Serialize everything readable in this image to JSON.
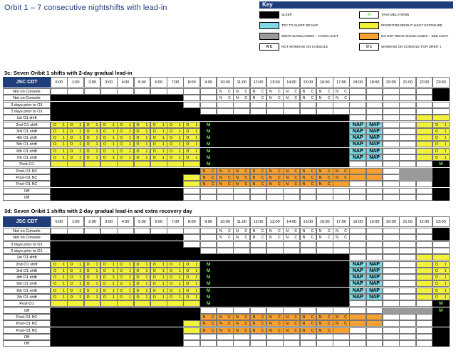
{
  "title": "Orbit 1 – 7 consecutive nightshifts with lead-in",
  "key": {
    "header": "Key",
    "items": [
      {
        "code": "sleep",
        "swatch": "",
        "label": "SLEEP",
        "color": "#000000"
      },
      {
        "code": "melatonin",
        "swatch": "M",
        "label": "TAKE MELATONIN",
        "color": "#ffffff"
      },
      {
        "code": "nap",
        "swatch": "",
        "label": "TRY TO SLEEP OR NAP",
        "color": "#7fd8e6"
      },
      {
        "code": "bright",
        "swatch": "",
        "label": "PRIORITIZE BRIGHT LIGHT EXPOSURE",
        "color": "#f2f23a"
      },
      {
        "code": "avoid",
        "swatch": "",
        "label": "WEAR SUNGLASSES – AVOID LIGHT",
        "color": "#9a9a9a"
      },
      {
        "code": "see",
        "swatch": "",
        "label": "DO NOT WEAR SUNGLASSES – SEE LIGHT",
        "color": "#f5a030"
      },
      {
        "code": "nc",
        "swatch": "N C",
        "label": "NOT WORKING ON CONSOLE",
        "color": "#ffffff"
      },
      {
        "code": "o1",
        "swatch": "O 1",
        "label": "WORKING ON CONSOLE FOR ORBIT 1",
        "color": "#ffffff"
      }
    ]
  },
  "chart_data": [
    {
      "type": "table",
      "title": "3c:  Seven Oribit 1 shifts with 2-day gradual lead-in",
      "header_label": "JSC CDT",
      "hours": [
        "0:00",
        "1:00",
        "2:00",
        "3:00",
        "4:00",
        "5:00",
        "6:00",
        "7:00",
        "8:00",
        "9:00",
        "10:00",
        "11:00",
        "12:00",
        "13:00",
        "14:00",
        "15:00",
        "16:00",
        "17:00",
        "18:00",
        "19:00",
        "20:00",
        "21:00",
        "22:00",
        "23:00"
      ],
      "rows": [
        {
          "label": "Not on Console",
          "cells": "WWWWWWWWWWnnnnnnnnWWWWWB"
        },
        {
          "label": "Not on Console",
          "cells": "BBBBBBBBWWnnnnnnnnWWWWWB"
        },
        {
          "label": "3 days prior to O1",
          "cells": "BBBBBBBBWWWWWWWWWWWWWWWW"
        },
        {
          "label": "2 days prior to O1",
          "cells": "BBBBBBBBBWWWWWWWWWWWWWWW"
        },
        {
          "label": "1st O1 shift",
          "cells": "BBBBBBBBBBBBBBBBBBWWWWYY"
        },
        {
          "label": "2nd O1 shift",
          "cells": "oooooooooMBBBBBBBBPPWWYo"
        },
        {
          "label": "3rd O1 shift",
          "cells": "oooooooooMBBBBBBBBPPWWYo"
        },
        {
          "label": "4th O1 shift",
          "cells": "oooooooooMBBBBBBBBPPWWYo"
        },
        {
          "label": "5th O1 shift",
          "cells": "oooooooooMBBBBBBBBPPWWYo"
        },
        {
          "label": "6th O1 shift",
          "cells": "oooooooooMBBBBBBBBPPWWYo"
        },
        {
          "label": "7th O1 shift",
          "cells": "oooooooooMBBBBBBBBPPWWYo"
        },
        {
          "label": "Post-O1",
          "cells": "YYYYYYYYYMBBBBBBBBWWWWWM"
        },
        {
          "label": "Post-O1 NC",
          "cells": "BBBBBBBBBcccccccccOOWGGB"
        },
        {
          "label": "Post-O1 NC",
          "cells": "BBBBBBBBYcccccccccOOWGGB"
        },
        {
          "label": "Post-O1 NC",
          "cells": "BBBBBBBBYccccccccOWWWWWB"
        },
        {
          "label": "Off",
          "cells": "BBBBBBBBWWWWWWWWWWWWWWWB"
        },
        {
          "label": "Off",
          "cells": "BBBBBBBBWWWWWWWWWWWWWWWB"
        }
      ]
    },
    {
      "type": "table",
      "title": "3d:  Seven Oribit 1 shifts with 2-day gradual lead-in and extra recovery day",
      "header_label": "JSC CDT",
      "hours": [
        "0:00",
        "1:00",
        "2:00",
        "3:00",
        "4:00",
        "5:00",
        "6:00",
        "7:00",
        "8:00",
        "9:00",
        "10:00",
        "11:00",
        "12:00",
        "13:00",
        "14:00",
        "15:00",
        "16:00",
        "17:00",
        "18:00",
        "19:00",
        "20:00",
        "21:00",
        "22:00",
        "23:00"
      ],
      "rows": [
        {
          "label": "Not on Console",
          "cells": "WWWWWWWWWWnnnnnnnnWWWWWB"
        },
        {
          "label": "Not on Console",
          "cells": "BBBBBBBBWWnnnnnnnnWWWWWB"
        },
        {
          "label": "3 days prior to O1",
          "cells": "BBBBBBBBWWWWWWWWWWWWWWWW"
        },
        {
          "label": "2 days prior to O1",
          "cells": "BBBBBBBBBWWWWWWWWWWWWWWW"
        },
        {
          "label": "1st O1 shift",
          "cells": "BBBBBBBBBBBBBBBBBBWWWWYY"
        },
        {
          "label": "2nd O1 shift",
          "cells": "oooooooooMBBBBBBBBPPWWYo"
        },
        {
          "label": "3rd O1 shift",
          "cells": "oooooooooMBBBBBBBBPPWWYo"
        },
        {
          "label": "4th O1 shift",
          "cells": "oooooooooMBBBBBBBBPPWWYo"
        },
        {
          "label": "5th O1 shift",
          "cells": "oooooooooMBBBBBBBBPPWWYo"
        },
        {
          "label": "6th O1 shift",
          "cells": "oooooooooMBBBBBBBBPPWWYo"
        },
        {
          "label": "7th O1 shift",
          "cells": "oooooooooMBBBBBBBBPPWWYo"
        },
        {
          "label": "Post-O1",
          "cells": "YYYYYYYYYMBBBBBBBBWWWWWM"
        },
        {
          "label": "Off",
          "cells": "BBBBBBBBBWWWWWWWWWWWGGGM"
        },
        {
          "label": "Post-O1 NC",
          "cells": "BBBBBBBBBcccccccccOOWWWB"
        },
        {
          "label": "Post-O1 NC",
          "cells": "BBBBBBBBYcccccccccOOWWWB"
        },
        {
          "label": "Post-O1 NC",
          "cells": "BBBBBBBBYccccccccOWWWWWB"
        },
        {
          "label": "Off",
          "cells": "BBBBBBBBWWWWWWWWWWWWWWWB"
        },
        {
          "label": "Off",
          "cells": "BBBBBBBBWWWWWWWWWWWWWWWB"
        }
      ]
    }
  ],
  "cell_text": {
    "nc": [
      "N",
      "C"
    ],
    "o1": [
      "O",
      "1"
    ],
    "nap": "NAP",
    "melatonin": "M"
  },
  "colors": {
    "navy": "#1f3d7a",
    "sleep": "#000000",
    "bright": "#f2f23a",
    "nap": "#7fd8e6",
    "avoid": "#9a9a9a",
    "see": "#f5a030",
    "melatonin": "#7ae04a"
  }
}
